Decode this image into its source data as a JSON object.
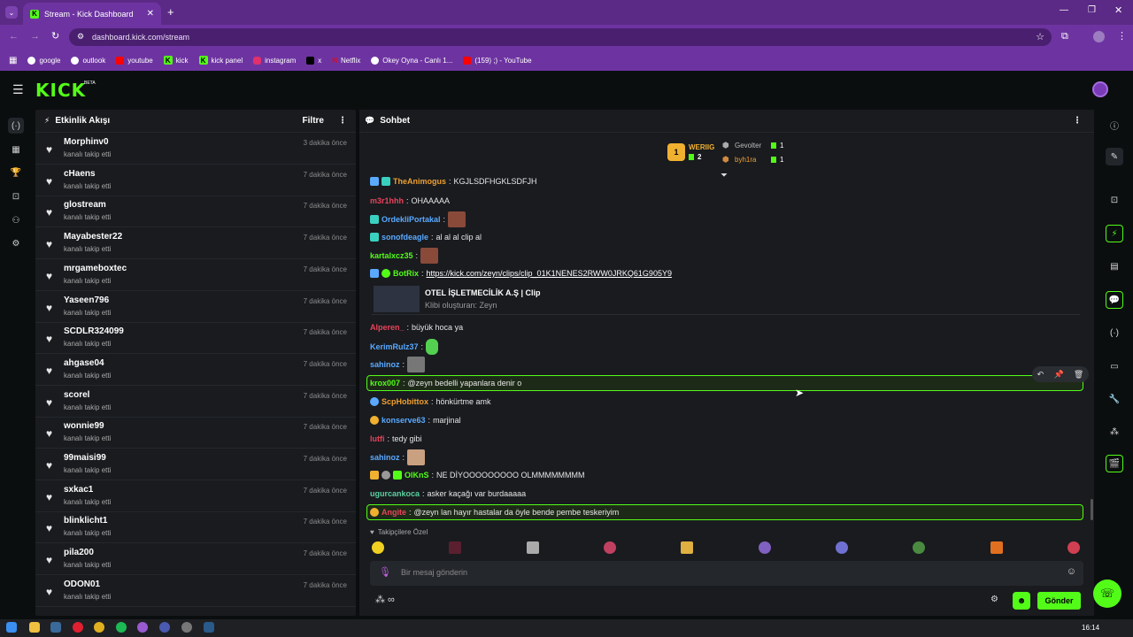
{
  "browser": {
    "tab_title": "Stream - Kick Dashboard",
    "url": "dashboard.kick.com/stream",
    "bookmarks": [
      {
        "label": "google",
        "color": "#ffffff"
      },
      {
        "label": "outlook",
        "color": "#ffffff"
      },
      {
        "label": "youtube",
        "color": "#ff0000"
      },
      {
        "label": "kick",
        "color": "#53fc18"
      },
      {
        "label": "kick panel",
        "color": "#53fc18"
      },
      {
        "label": "instagram",
        "color": "#e1306c"
      },
      {
        "label": "x",
        "color": "#ffffff"
      },
      {
        "label": "Netflix",
        "color": "#e50914"
      },
      {
        "label": "Okey Oyna - Canlı 1...",
        "color": "#ffffff"
      },
      {
        "label": "(159) ;) - YouTube",
        "color": "#ff0000"
      }
    ]
  },
  "header": {
    "logo": "KICK",
    "logo_beta": "BETA"
  },
  "activity": {
    "title": "Etkinlik Akışı",
    "filter_label": "Filtre",
    "items": [
      {
        "name": "Morphinv0",
        "action": "kanalı takip etti",
        "time": "3 dakika önce"
      },
      {
        "name": "cHaens",
        "action": "kanalı takip etti",
        "time": "7 dakika önce"
      },
      {
        "name": "glostream",
        "action": "kanalı takip etti",
        "time": "7 dakika önce"
      },
      {
        "name": "Mayabester22",
        "action": "kanalı takip etti",
        "time": "7 dakika önce"
      },
      {
        "name": "mrgameboxtec",
        "action": "kanalı takip etti",
        "time": "7 dakika önce"
      },
      {
        "name": "Yaseen796",
        "action": "kanalı takip etti",
        "time": "7 dakika önce"
      },
      {
        "name": "SCDLR324099",
        "action": "kanalı takip etti",
        "time": "7 dakika önce"
      },
      {
        "name": "ahgase04",
        "action": "kanalı takip etti",
        "time": "7 dakika önce"
      },
      {
        "name": "scorel",
        "action": "kanalı takip etti",
        "time": "7 dakika önce"
      },
      {
        "name": "wonnie99",
        "action": "kanalı takip etti",
        "time": "7 dakika önce"
      },
      {
        "name": "99maisi99",
        "action": "kanalı takip etti",
        "time": "7 dakika önce"
      },
      {
        "name": "sxkac1",
        "action": "kanalı takip etti",
        "time": "7 dakika önce"
      },
      {
        "name": "blinklicht1",
        "action": "kanalı takip etti",
        "time": "7 dakika önce"
      },
      {
        "name": "pila200",
        "action": "kanalı takip etti",
        "time": "7 dakika önce"
      },
      {
        "name": "ODON01",
        "action": "kanalı takip etti",
        "time": "7 dakika önce"
      }
    ]
  },
  "chat": {
    "title": "Sohbet",
    "leaderboard": {
      "top_name": "WERIIG",
      "top_count": "2",
      "top_rank": "1",
      "second_name": "Gevolter",
      "second_count": "1",
      "third_name": "byh1ra",
      "third_count": "1"
    },
    "messages": [
      {
        "user": "TheAnimogus",
        "color": "#f0a030",
        "text": "KGJLSDFHGKLSDFJH"
      },
      {
        "user": "m3r1hhh",
        "color": "#e8435a",
        "text": "OHAAAAA"
      },
      {
        "user": "OrdekliPortakal",
        "color": "#5aa9ff",
        "text": ""
      },
      {
        "user": "sonofdeagle",
        "color": "#5aa9ff",
        "text": "al al al clip al"
      },
      {
        "user": "kartalxcz35",
        "color": "#53fc18",
        "text": ""
      },
      {
        "user": "BotRix",
        "color": "#53fc18",
        "text": "https://kick.com/zeyn/clips/clip_01K1NENES2RWW0JRKQ61G905Y9"
      },
      {
        "user": "Alperen_",
        "color": "#e8435a",
        "text": "büyük hoca ya"
      },
      {
        "user": "KerimRulz37",
        "color": "#5aa9ff",
        "text": ""
      },
      {
        "user": "sahinoz",
        "color": "#5aa9ff",
        "text": ""
      },
      {
        "user": "krox007",
        "color": "#53fc18",
        "text": "@zeyn bedelli yapanlara denir o"
      },
      {
        "user": "ScpHobittox",
        "color": "#f0a030",
        "text": "hönkürtme amk"
      },
      {
        "user": "konserve63",
        "color": "#5aa9ff",
        "text": "marjinal"
      },
      {
        "user": "lutfi",
        "color": "#e8435a",
        "text": "tedy gibi"
      },
      {
        "user": "sahinoz",
        "color": "#5aa9ff",
        "text": ""
      },
      {
        "user": "OlKnS",
        "color": "#53fc18",
        "text": "NE DİYOOOOOOOOO OLMMMMMMMM"
      },
      {
        "user": "ugurcankoca",
        "color": "#5ad0a0",
        "text": "asker kaçağı var burdaaaaa"
      },
      {
        "user": "Angite",
        "color": "#e8435a",
        "text": "@zeyn lan hayır hastalar da öyle bende pembe teskeriyim"
      }
    ],
    "clip": {
      "title": "OTEL İŞLETMECİLİK A.Ş | Clip",
      "creator": "Klibi oluşturan: Zeyn"
    },
    "emote_bar_label": "Takipçilere Özel",
    "input_placeholder": "Bir mesaj gönderin",
    "send_label": "Gönder"
  },
  "taskbar": {
    "time": "16:14"
  }
}
